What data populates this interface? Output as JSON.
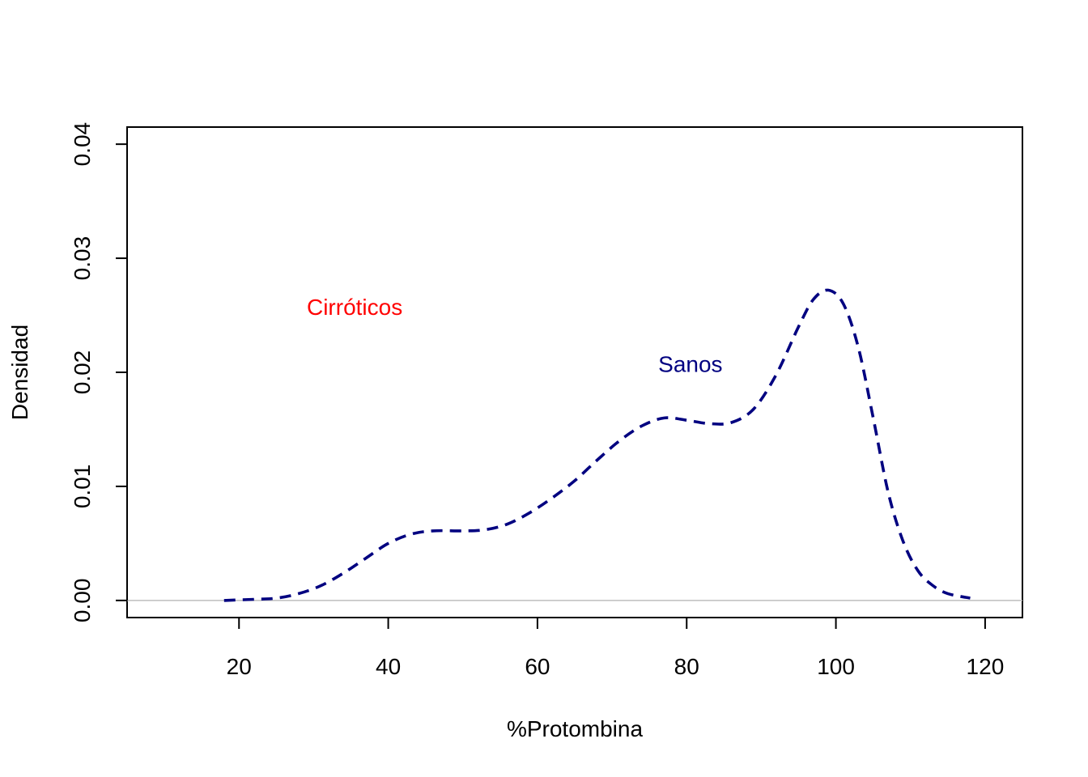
{
  "chart_data": {
    "type": "line",
    "title": "",
    "xlabel": "%Protombina",
    "ylabel": "Densidad",
    "xlim": [
      5,
      125
    ],
    "ylim": [
      -0.0015,
      0.0415
    ],
    "x_ticks": [
      20,
      40,
      60,
      80,
      100,
      120
    ],
    "x_tick_labels": [
      "20",
      "40",
      "60",
      "80",
      "100",
      "120"
    ],
    "y_ticks": [
      0,
      0.01,
      0.02,
      0.03,
      0.04
    ],
    "y_tick_labels": [
      "0.00",
      "0.01",
      "0.02",
      "0.03",
      "0.04"
    ],
    "grid": false,
    "baseline": {
      "y": 0,
      "color": "#bebebe"
    },
    "series": [
      {
        "line_style": "dashed",
        "color": "#000080",
        "points": [
          [
            18,
            0.0
          ],
          [
            22,
            0.0001
          ],
          [
            25,
            0.0002
          ],
          [
            28,
            0.0006
          ],
          [
            31,
            0.0013
          ],
          [
            34,
            0.0024
          ],
          [
            37,
            0.0037
          ],
          [
            40,
            0.005
          ],
          [
            43,
            0.0058
          ],
          [
            46,
            0.0061
          ],
          [
            50,
            0.0061
          ],
          [
            53,
            0.0062
          ],
          [
            56,
            0.0067
          ],
          [
            59,
            0.0077
          ],
          [
            62,
            0.009
          ],
          [
            65,
            0.0105
          ],
          [
            68,
            0.0123
          ],
          [
            71,
            0.014
          ],
          [
            74,
            0.0153
          ],
          [
            77,
            0.016
          ],
          [
            80,
            0.0158
          ],
          [
            83,
            0.0155
          ],
          [
            86,
            0.0156
          ],
          [
            89,
            0.0168
          ],
          [
            92,
            0.0198
          ],
          [
            95,
            0.024
          ],
          [
            97,
            0.0264
          ],
          [
            99,
            0.0272
          ],
          [
            101,
            0.026
          ],
          [
            103,
            0.0222
          ],
          [
            105,
            0.016
          ],
          [
            107,
            0.0095
          ],
          [
            109,
            0.0052
          ],
          [
            111,
            0.0026
          ],
          [
            113,
            0.0013
          ],
          [
            115,
            0.0006
          ],
          [
            118,
            0.0002
          ]
        ]
      }
    ],
    "annotations": [
      {
        "text": "Cirróticos",
        "x": 35.5,
        "y": 0.0257,
        "color": "#ff0000"
      },
      {
        "text": "Sanos",
        "x": 80.5,
        "y": 0.0207,
        "color": "#000080"
      }
    ]
  }
}
